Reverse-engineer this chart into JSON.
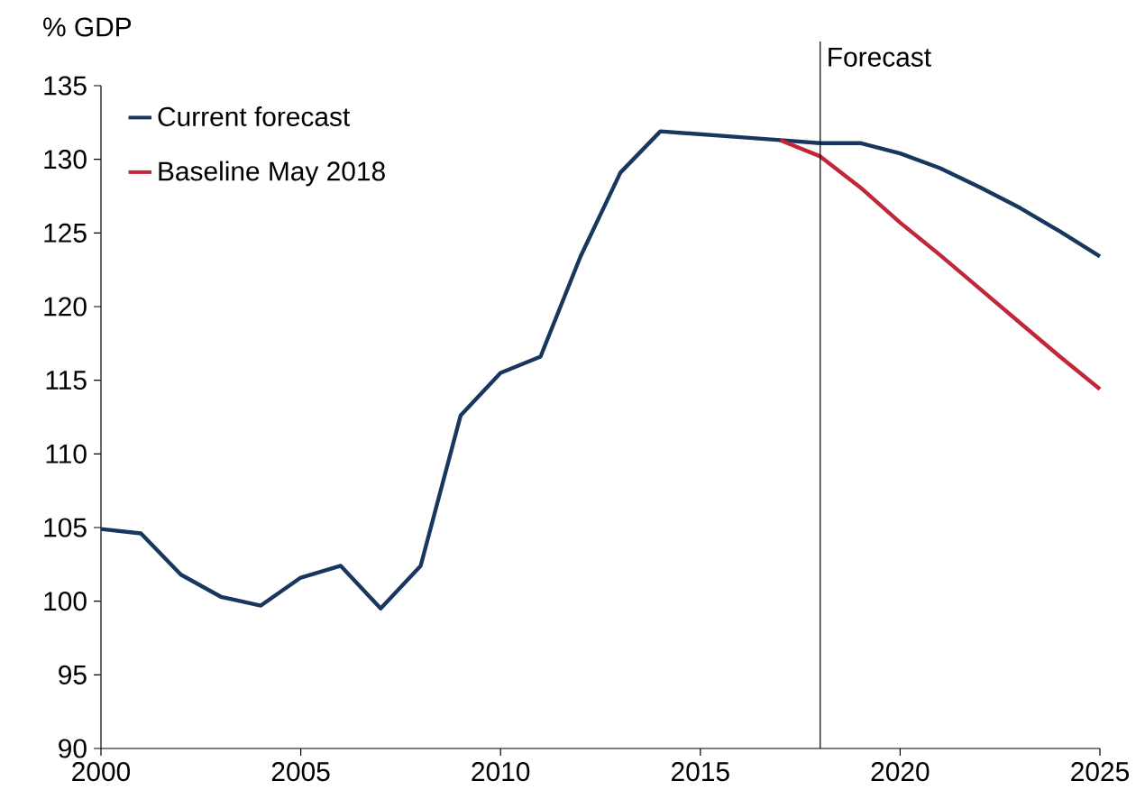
{
  "chart_data": {
    "type": "line",
    "ylabel": "% GDP",
    "x": [
      2000,
      2001,
      2002,
      2003,
      2004,
      2005,
      2006,
      2007,
      2008,
      2009,
      2010,
      2011,
      2012,
      2013,
      2014,
      2015,
      2016,
      2017,
      2018,
      2019,
      2020,
      2021,
      2022,
      2023,
      2024,
      2025
    ],
    "series": [
      {
        "name": "Current forecast",
        "color": "#17375e",
        "values": [
          104.9,
          104.6,
          101.8,
          100.3,
          99.7,
          101.6,
          102.4,
          99.5,
          102.4,
          112.6,
          115.5,
          116.6,
          123.4,
          129.1,
          131.9,
          131.7,
          131.5,
          131.3,
          131.1,
          131.1,
          130.4,
          129.4,
          128.1,
          126.7,
          125.1,
          123.4
        ]
      },
      {
        "name": "Baseline May 2018",
        "color": "#c0283a",
        "x": [
          2017,
          2018,
          2019,
          2020,
          2021,
          2022,
          2023,
          2024,
          2025
        ],
        "values": [
          131.3,
          130.2,
          128.1,
          125.7,
          123.5,
          121.2,
          118.9,
          116.6,
          114.4
        ]
      }
    ],
    "xlim": [
      2000,
      2025
    ],
    "xticks": [
      2000,
      2005,
      2010,
      2015,
      2020,
      2025
    ],
    "ylim": [
      90,
      135
    ],
    "yticks": [
      90,
      95,
      100,
      105,
      110,
      115,
      120,
      125,
      130,
      135
    ],
    "ref_lines": [
      {
        "axis": "x",
        "value": 2018,
        "label": "Forecast",
        "color": "#000000"
      }
    ],
    "legend": "top left"
  }
}
